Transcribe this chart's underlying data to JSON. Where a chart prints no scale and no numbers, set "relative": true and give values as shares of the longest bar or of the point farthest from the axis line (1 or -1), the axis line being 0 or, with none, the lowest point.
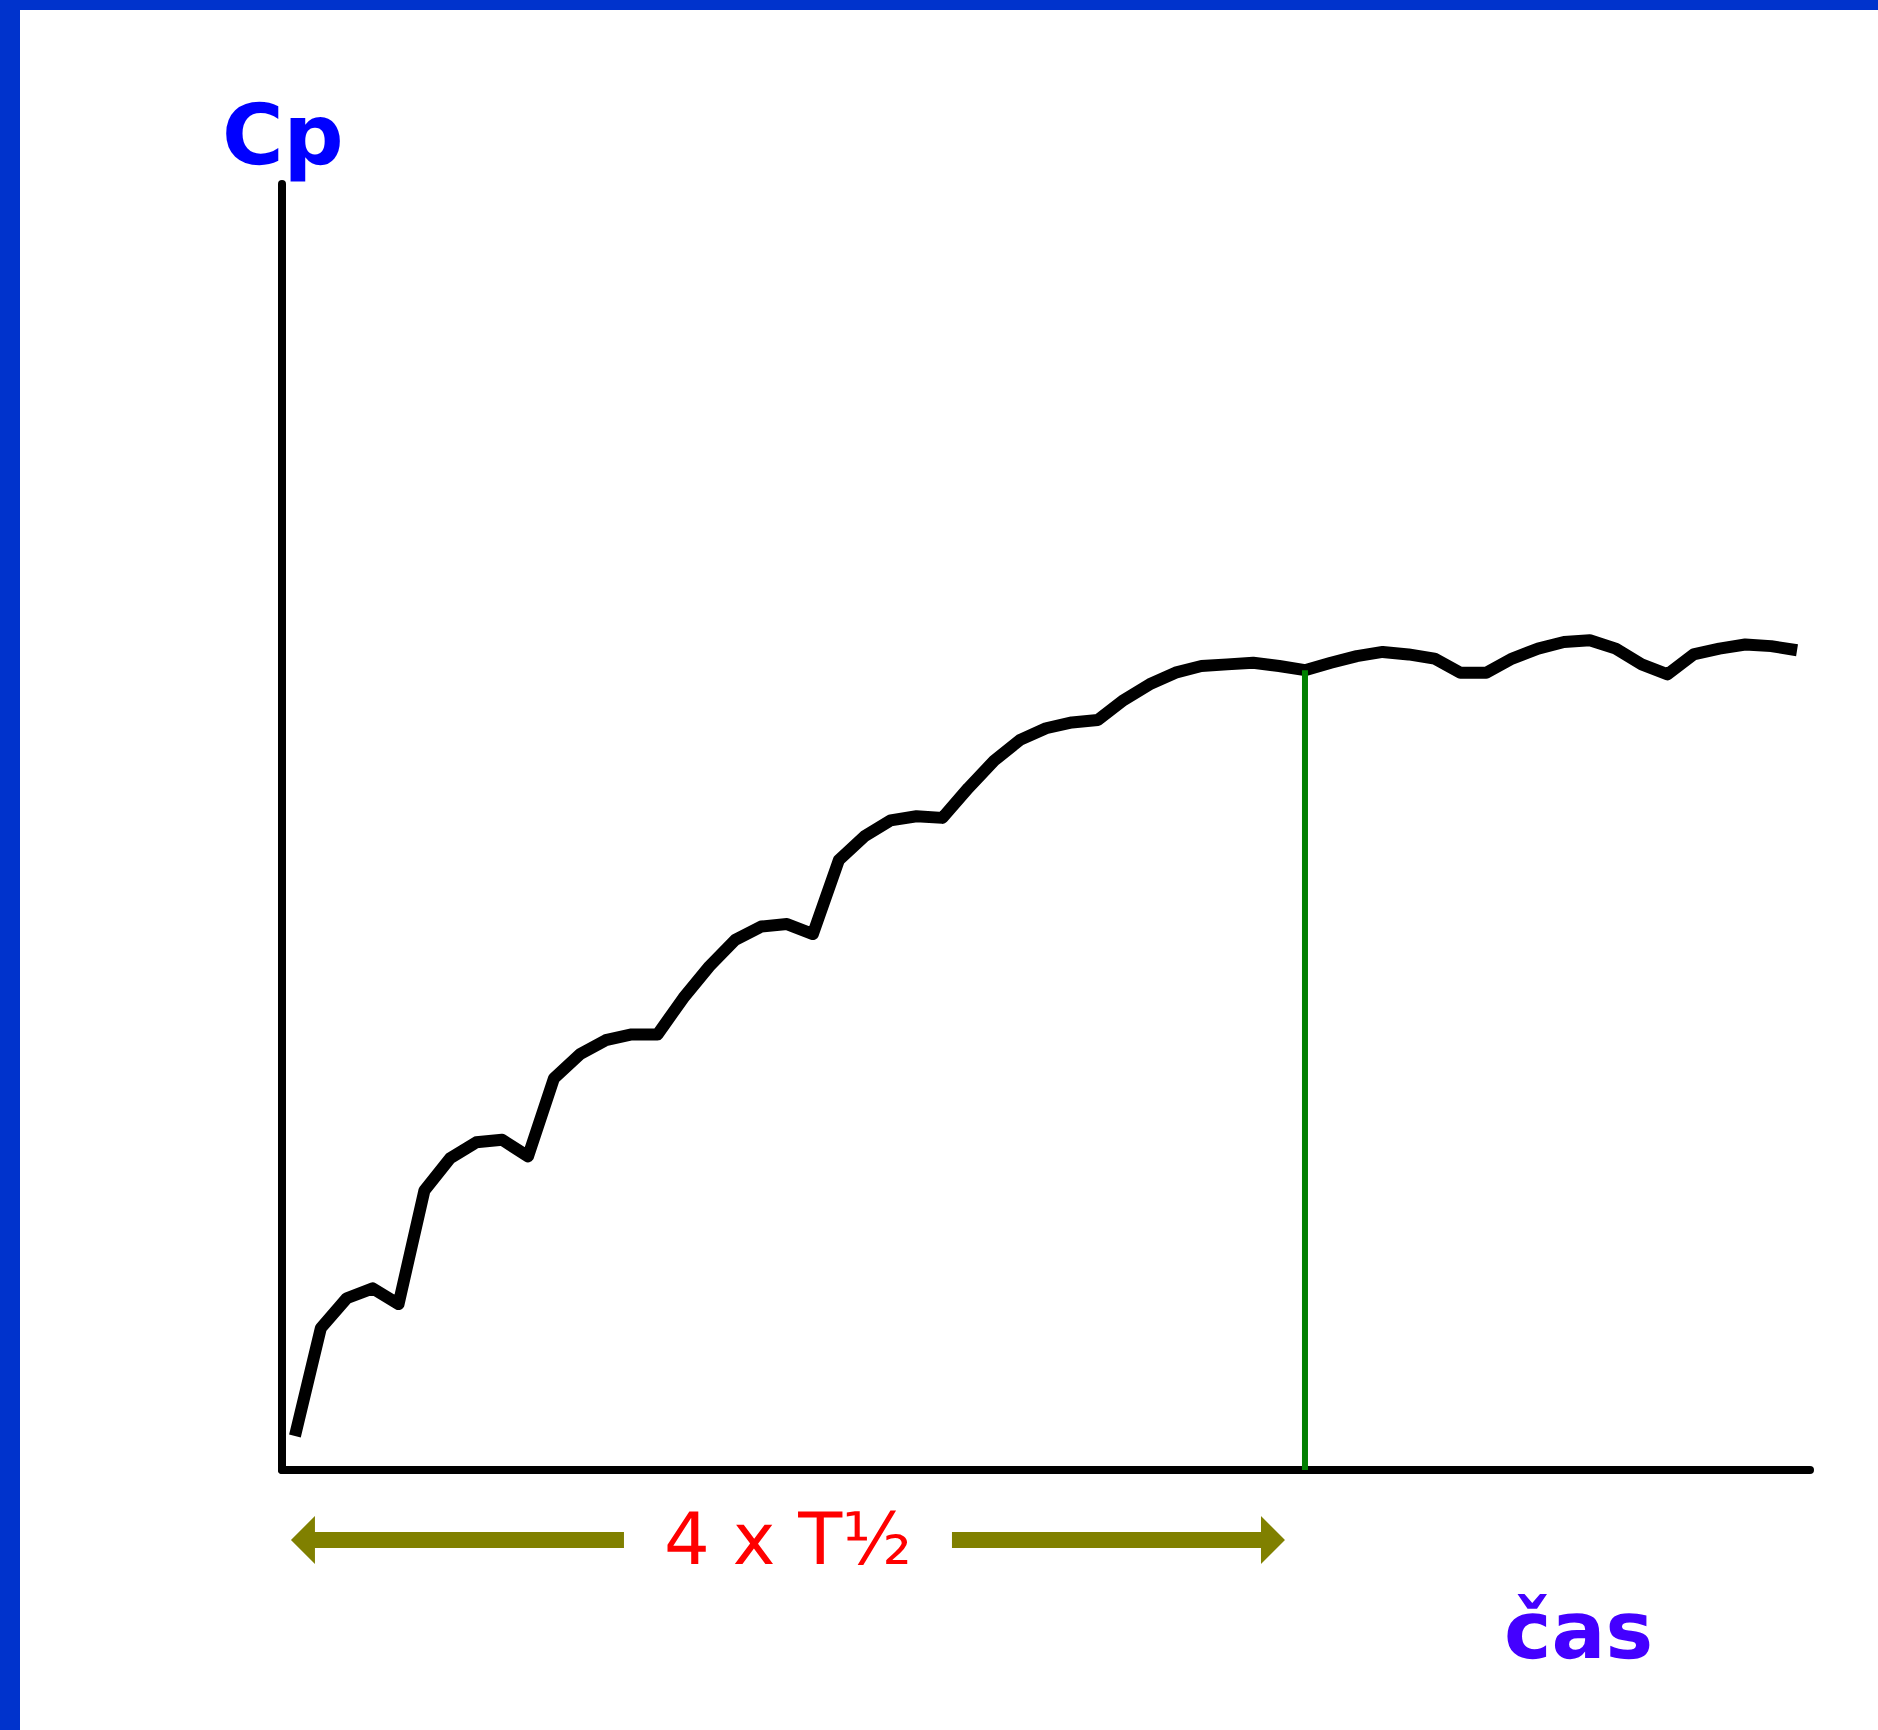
{
  "chart_data": {
    "type": "line",
    "relative": true,
    "xlabel": "čas",
    "grid": false,
    "categories": [
      null,
      null,
      null,
      null,
      null,
      null,
      null,
      null,
      null,
      null,
      null,
      null,
      null,
      null,
      null,
      null,
      null,
      null,
      null,
      null,
      null,
      null,
      null,
      null,
      null,
      null,
      null,
      null,
      null,
      null,
      null,
      null,
      null,
      null,
      null,
      null,
      null,
      null,
      null,
      null,
      null,
      null,
      null,
      null,
      null,
      null,
      null,
      null,
      null,
      null,
      null,
      null,
      null,
      null,
      null,
      null,
      null,
      null,
      null
    ],
    "annotations": [
      "Cp",
      "4 x T½"
    ],
    "series": [
      {
        "color": "#000000",
        "values": [
          0.041,
          0.171,
          0.207,
          0.219,
          0.2,
          0.337,
          0.376,
          0.395,
          0.398,
          0.378,
          0.472,
          0.501,
          0.518,
          0.525,
          0.525,
          0.569,
          0.607,
          0.639,
          0.655,
          0.658,
          0.646,
          0.735,
          0.764,
          0.783,
          0.788,
          0.786,
          0.822,
          0.855,
          0.88,
          0.894,
          0.901,
          0.904,
          0.928,
          0.947,
          0.961,
          0.969,
          0.971,
          0.973,
          0.969,
          0.964,
          0.973,
          0.981,
          0.986,
          0.983,
          0.978,
          0.961,
          0.961,
          0.978,
          0.99,
          0.998,
          1.0,
          0.99,
          0.971,
          0.959,
          0.983,
          0.99,
          0.995,
          0.993,
          0.988
        ]
      }
    ]
  }
}
